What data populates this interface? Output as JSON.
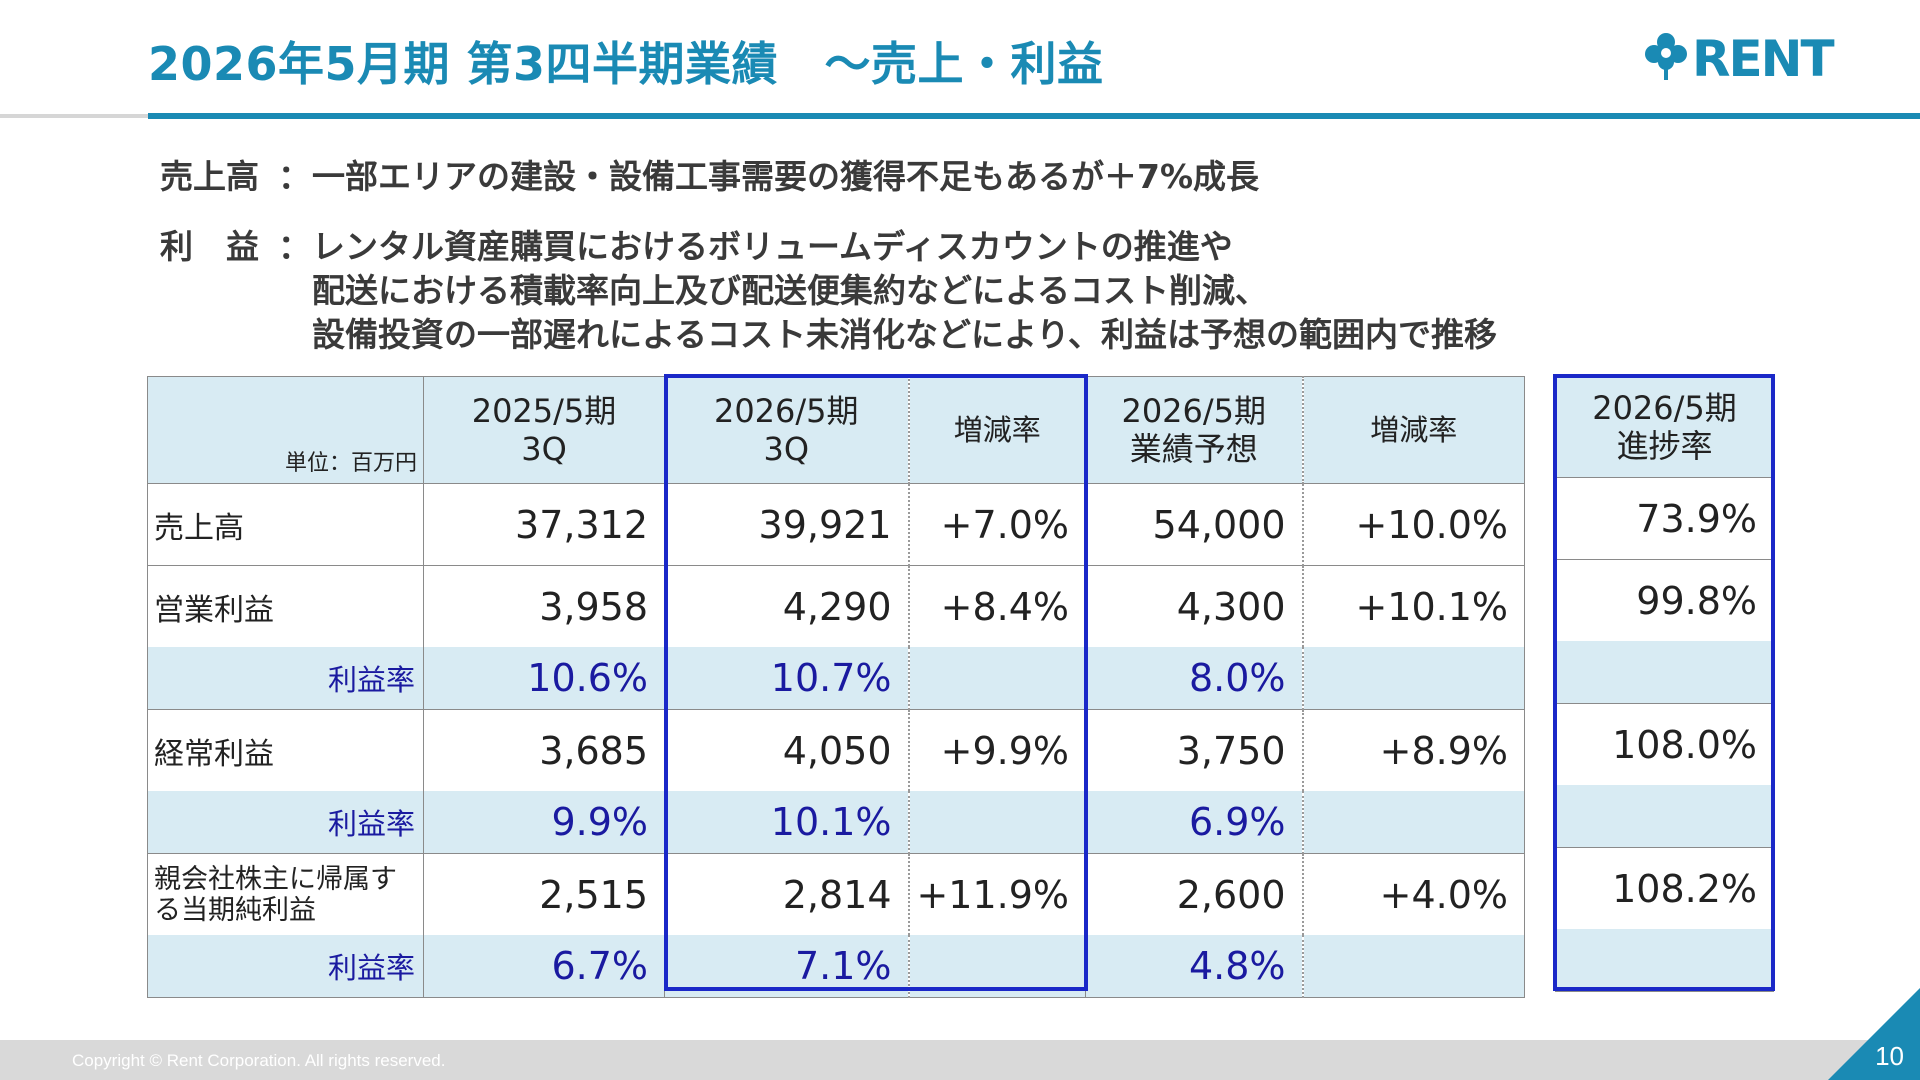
{
  "header": {
    "title": "2026年5月期 第3四半期業績　～売上・利益",
    "logo_text": "RENT"
  },
  "summary": {
    "sales_label": "売上高",
    "sales_text": "一部エリアの建設・設備工事需要の獲得不足もあるが＋7%成長",
    "profit_label": "利　益",
    "separator": "：",
    "profit_lines": [
      "レンタル資産購買におけるボリュームディスカウントの推進や",
      "配送における積載率向上及び配送便集約などによるコスト削減、",
      "設備投資の一部遅れによるコスト未消化などにより、利益は予想の範囲内で推移"
    ]
  },
  "table": {
    "unit": "単位：百万円",
    "headers": {
      "fy25_q3": [
        "2025/5期",
        "3Q"
      ],
      "fy26_q3": [
        "2026/5期",
        "3Q"
      ],
      "change1": "増減率",
      "fy26_plan": [
        "2026/5期",
        "業績予想"
      ],
      "change2": "増減率",
      "progress": [
        "2026/5期",
        "進捗率"
      ]
    },
    "rows": [
      {
        "label": "売上高",
        "fy25": "37,312",
        "fy26": "39,921",
        "chg": "+7.0%",
        "plan": "54,000",
        "plan_chg": "+10.0%",
        "progress": "73.9%"
      },
      {
        "label": "営業利益",
        "fy25": "3,958",
        "fy26": "4,290",
        "chg": "+8.4%",
        "plan": "4,300",
        "plan_chg": "+10.1%",
        "progress": "99.8%",
        "margin": {
          "label": "利益率",
          "fy25": "10.6%",
          "fy26": "10.7%",
          "plan": "8.0%"
        }
      },
      {
        "label": "経常利益",
        "fy25": "3,685",
        "fy26": "4,050",
        "chg": "+9.9%",
        "plan": "3,750",
        "plan_chg": "+8.9%",
        "progress": "108.0%",
        "margin": {
          "label": "利益率",
          "fy25": "9.9%",
          "fy26": "10.1%",
          "plan": "6.9%"
        }
      },
      {
        "label": "親会社株主に帰属する当期純利益",
        "fy25": "2,515",
        "fy26": "2,814",
        "chg": "+11.9%",
        "plan": "2,600",
        "plan_chg": "+4.0%",
        "progress": "108.2%",
        "margin": {
          "label": "利益率",
          "fy25": "6.7%",
          "fy26": "7.1%",
          "plan": "4.8%"
        }
      }
    ]
  },
  "footer": {
    "copyright": "Copyright © Rent Corporation. All rights reserved.",
    "page": "10"
  },
  "colors": {
    "accent": "#1a8ab4",
    "highlight_border": "#1a28c8",
    "margin_text": "#1a1aa0",
    "band": "#d8ebf3"
  }
}
